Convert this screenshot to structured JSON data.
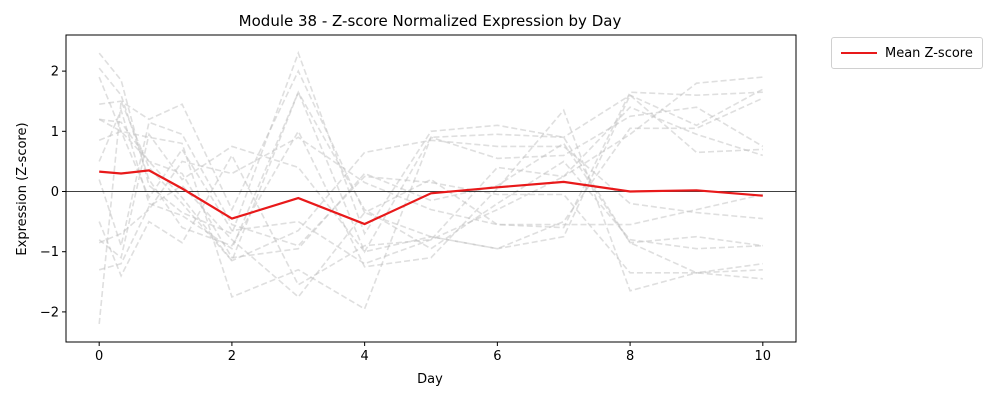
{
  "chart_data": {
    "type": "line",
    "title": "Module 38 - Z-score Normalized Expression by Day",
    "xlabel": "Day",
    "ylabel": "Expression (Z-score)",
    "xlim": [
      -0.5,
      10.5
    ],
    "ylim": [
      -2.5,
      2.6
    ],
    "xticks": [
      0,
      2,
      4,
      6,
      8,
      10
    ],
    "yticks": [
      -2,
      -1,
      0,
      1,
      2
    ],
    "ytick_labels": [
      "−2",
      "−1",
      "0",
      "1",
      "2"
    ],
    "zero_line": true,
    "grid": false,
    "legend_position": "outside top-right",
    "mean_series": {
      "name": "Mean Z-score",
      "color": "#e8191a",
      "x": [
        0,
        0.33,
        0.75,
        1.25,
        2,
        3,
        4,
        5,
        6,
        7,
        8,
        9,
        10
      ],
      "y": [
        0.33,
        0.3,
        0.35,
        0.05,
        -0.45,
        -0.11,
        -0.54,
        -0.03,
        0.07,
        0.16,
        0.0,
        0.02,
        -0.07
      ]
    },
    "background_series_color": "#bfbfbf",
    "background_series": [
      {
        "x": [
          0,
          0.33,
          0.75,
          1.25,
          2,
          3,
          4,
          5,
          6,
          7,
          8,
          9,
          10
        ],
        "y": [
          2.3,
          1.85,
          0.1,
          -0.35,
          -0.7,
          2.3,
          -0.7,
          1.0,
          1.1,
          0.9,
          -0.85,
          -1.35,
          -1.45
        ]
      },
      {
        "x": [
          0,
          0.33,
          0.75,
          1.25,
          2,
          3,
          4,
          5,
          6,
          7,
          8,
          9,
          10
        ],
        "y": [
          -2.2,
          1.5,
          0.4,
          -0.2,
          -1.15,
          1.65,
          -1.0,
          0.9,
          0.95,
          0.9,
          1.6,
          1.1,
          1.7
        ]
      },
      {
        "x": [
          0,
          0.33,
          0.75,
          1.25,
          2,
          3,
          4,
          5,
          6,
          7,
          8,
          9,
          10
        ],
        "y": [
          2.05,
          1.6,
          0.2,
          -0.6,
          -0.9,
          1.0,
          -1.25,
          -1.1,
          0.05,
          1.35,
          -1.65,
          -1.35,
          -1.3
        ]
      },
      {
        "x": [
          0,
          0.33,
          0.75,
          1.25,
          2,
          3,
          4,
          5,
          6,
          7,
          8,
          9,
          10
        ],
        "y": [
          1.45,
          1.5,
          1.2,
          1.45,
          -0.3,
          2.0,
          -0.35,
          0.2,
          -0.55,
          -0.6,
          1.65,
          1.6,
          1.65
        ]
      },
      {
        "x": [
          0,
          0.33,
          0.75,
          1.25,
          2,
          3,
          4,
          5,
          6,
          7,
          8,
          9,
          10
        ],
        "y": [
          0.85,
          1.0,
          0.9,
          0.8,
          -1.75,
          -1.3,
          -1.95,
          0.9,
          0.55,
          0.6,
          1.25,
          1.4,
          0.75
        ]
      },
      {
        "x": [
          0,
          0.33,
          0.75,
          1.25,
          2,
          3,
          4,
          5,
          6,
          7,
          8,
          9,
          10
        ],
        "y": [
          -0.8,
          -1.1,
          0.95,
          0.2,
          0.75,
          0.4,
          -1.0,
          -0.75,
          -0.95,
          -0.5,
          1.05,
          1.05,
          1.55
        ]
      },
      {
        "x": [
          0,
          0.33,
          0.75,
          1.25,
          2,
          3,
          4,
          5,
          6,
          7,
          8,
          9,
          10
        ],
        "y": [
          1.2,
          1.15,
          0.5,
          -0.1,
          -1.15,
          -0.65,
          0.65,
          0.85,
          0.75,
          0.75,
          -0.2,
          -0.35,
          -0.45
        ]
      },
      {
        "x": [
          0,
          0.33,
          0.75,
          1.25,
          2,
          3,
          4,
          5,
          6,
          7,
          8,
          9,
          10
        ],
        "y": [
          -1.3,
          -1.2,
          -0.25,
          0.1,
          -0.8,
          -1.75,
          -0.35,
          -0.75,
          -0.95,
          -0.75,
          1.6,
          0.65,
          0.7
        ]
      },
      {
        "x": [
          0,
          0.33,
          0.75,
          1.25,
          2,
          3,
          4,
          5,
          6,
          7,
          8,
          9,
          10
        ],
        "y": [
          -0.5,
          -1.4,
          -0.5,
          -0.85,
          0.6,
          -1.55,
          -0.9,
          -0.8,
          0.4,
          0.25,
          0.95,
          1.8,
          1.9
        ]
      },
      {
        "x": [
          0,
          0.33,
          0.75,
          1.25,
          2,
          3,
          4,
          5,
          6,
          7,
          8,
          9,
          10
        ],
        "y": [
          0.2,
          -0.9,
          1.15,
          0.95,
          -0.55,
          -0.9,
          0.25,
          0.15,
          -0.05,
          -0.05,
          -1.35,
          -1.35,
          -1.2
        ]
      },
      {
        "x": [
          0,
          0.33,
          0.75,
          1.25,
          2,
          3,
          4,
          5,
          6,
          7,
          8,
          9,
          10
        ],
        "y": [
          1.2,
          1.0,
          0.5,
          0.3,
          -1.1,
          -0.95,
          0.3,
          -0.15,
          0.1,
          0.8,
          -0.85,
          -0.75,
          -0.9
        ]
      },
      {
        "x": [
          0,
          0.33,
          0.75,
          1.25,
          2,
          3,
          4,
          5,
          6,
          7,
          8,
          9,
          10
        ],
        "y": [
          -0.85,
          -0.7,
          -0.3,
          0.5,
          0.3,
          0.9,
          0.15,
          -0.3,
          -0.55,
          -0.55,
          -0.55,
          -0.3,
          -0.05
        ]
      },
      {
        "x": [
          0,
          0.33,
          0.75,
          1.25,
          2,
          3,
          4,
          5,
          6,
          7,
          8,
          9,
          10
        ],
        "y": [
          1.9,
          1.0,
          -0.1,
          0.7,
          -0.65,
          -0.5,
          -1.2,
          -0.8,
          -0.3,
          0.25,
          1.4,
          0.95,
          0.6
        ]
      },
      {
        "x": [
          0,
          0.33,
          0.75,
          1.25,
          2,
          3,
          4,
          5,
          6,
          7,
          8,
          9,
          10
        ],
        "y": [
          0.5,
          1.35,
          -0.2,
          -0.4,
          -0.95,
          1.65,
          -0.3,
          -0.95,
          -0.2,
          0.5,
          -0.8,
          -0.95,
          -0.9
        ]
      }
    ]
  }
}
